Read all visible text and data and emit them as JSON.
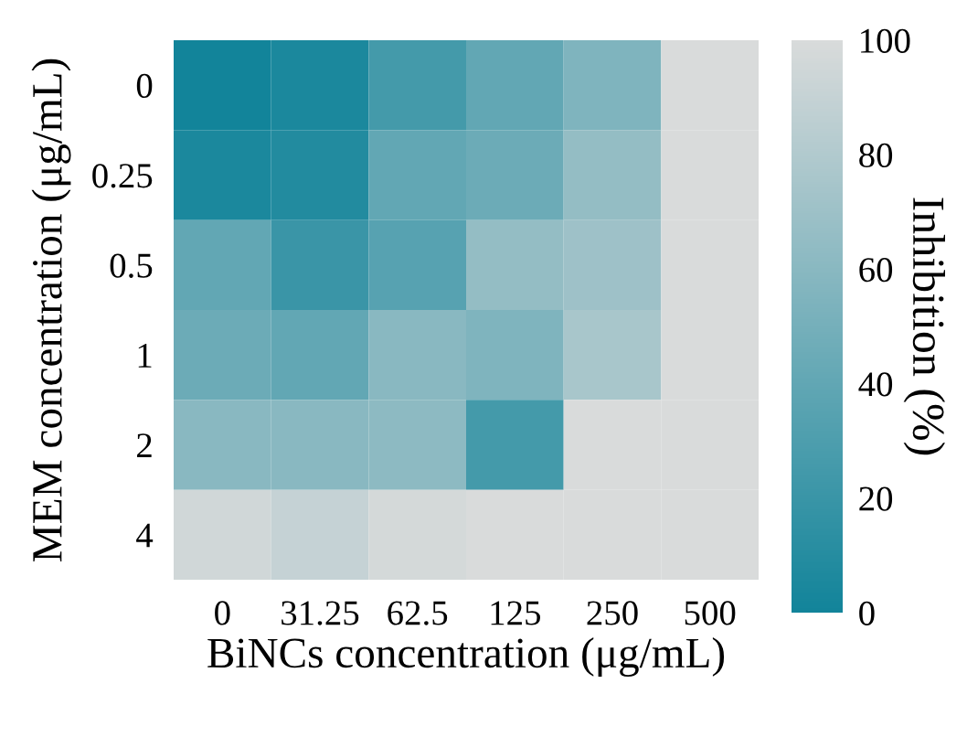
{
  "chart_data": {
    "type": "heatmap",
    "xlabel": "BiNCs concentration (μg/mL)",
    "ylabel": "MEM concentration (μg/mL)",
    "clabel": "Inhibition (%)",
    "categories": [
      "0",
      "31.25",
      "62.5",
      "125",
      "250",
      "500"
    ],
    "y_categories": [
      "0",
      "0.25",
      "0.5",
      "1",
      "2",
      "4"
    ],
    "cells": [
      [
        0,
        5,
        25,
        40,
        55,
        100
      ],
      [
        5,
        8,
        40,
        45,
        65,
        100
      ],
      [
        40,
        20,
        35,
        65,
        70,
        100
      ],
      [
        45,
        40,
        60,
        55,
        75,
        100
      ],
      [
        60,
        60,
        62,
        25,
        100,
        100
      ],
      [
        95,
        90,
        97,
        100,
        100,
        100
      ]
    ],
    "clim": [
      0,
      100
    ],
    "cticks": [
      0,
      20,
      40,
      60,
      80,
      100
    ]
  }
}
